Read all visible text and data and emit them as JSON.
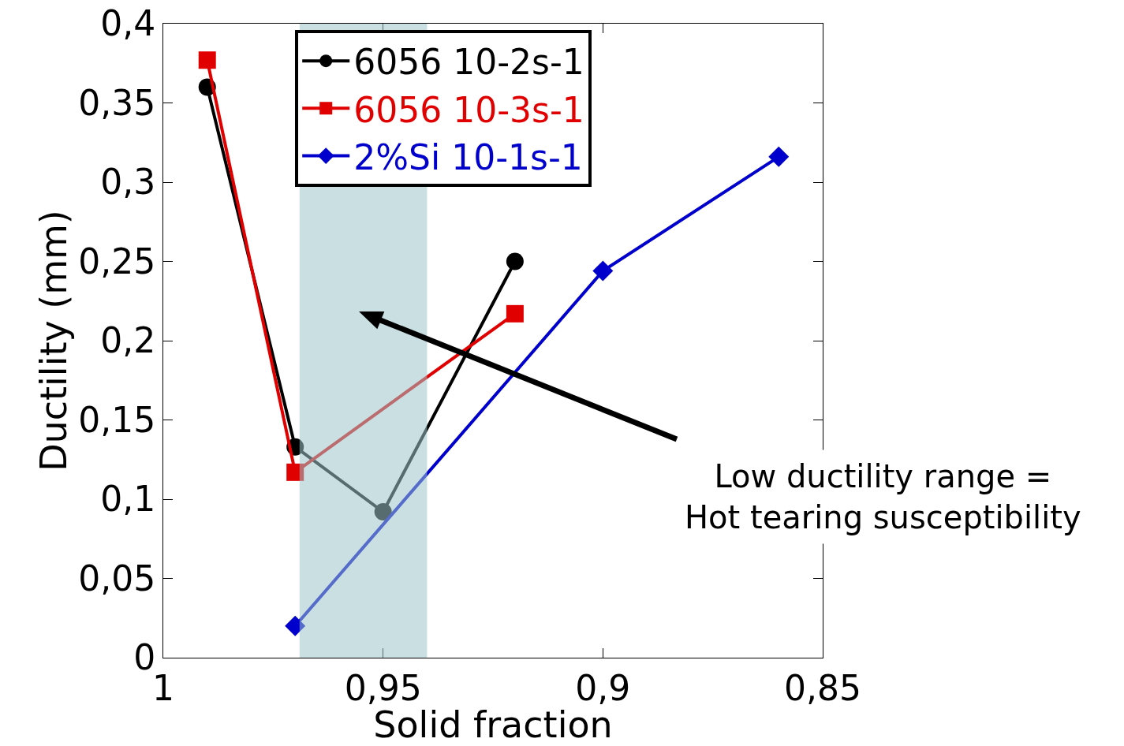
{
  "chart_data": {
    "type": "line",
    "xlabel": "Solid fraction",
    "ylabel": "Ductility (mm)",
    "xlim": [
      1,
      0.85
    ],
    "xticks": [
      1,
      {
        "value": 0.95,
        "label": "0,95"
      },
      {
        "value": 0.9,
        "label": "0,9"
      },
      {
        "value": 0.85,
        "label": "0,85"
      }
    ],
    "ylim": [
      0,
      0.4
    ],
    "yticks": [
      0,
      {
        "value": 0.05,
        "label": "0,05"
      },
      {
        "value": 0.1,
        "label": "0,1"
      },
      {
        "value": 0.15,
        "label": "0,15"
      },
      {
        "value": 0.2,
        "label": "0,2"
      },
      {
        "value": 0.25,
        "label": "0,25"
      },
      {
        "value": 0.3,
        "label": "0,3"
      },
      {
        "value": 0.35,
        "label": "0,35"
      },
      {
        "value": 0.4,
        "label": "0,4"
      }
    ],
    "grid": false,
    "legend": "top left",
    "line_style": "solid",
    "series": [
      {
        "name": "6056 10-2s-1",
        "color": "#000000",
        "marker": "circle",
        "x": [
          0.99,
          0.97,
          0.95,
          0.92
        ],
        "values": [
          0.36,
          0.133,
          0.092,
          0.25
        ]
      },
      {
        "name": "6056 10-3s-1",
        "color": "#e00000",
        "marker": "square",
        "x": [
          0.99,
          0.97,
          0.92
        ],
        "values": [
          0.377,
          0.117,
          0.217
        ]
      },
      {
        "name": "2%Si 10-1s-1",
        "color": "#0000cc",
        "marker": "diamond",
        "x": [
          0.97,
          0.9,
          0.86
        ],
        "values": [
          0.02,
          0.244,
          0.316
        ]
      }
    ],
    "bands": [
      {
        "axis": "x",
        "from": 0.969,
        "to": 0.94,
        "color": "#9cc4c8"
      }
    ],
    "annotations": [
      "Low ductility range =\nHot tearing susceptibility"
    ]
  }
}
